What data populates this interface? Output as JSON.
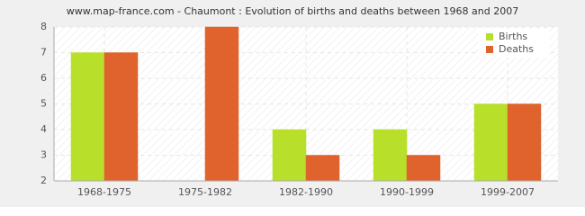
{
  "chart_data": {
    "type": "bar",
    "title": "www.map-france.com - Chaumont : Evolution of births and deaths between 1968 and 2007",
    "categories": [
      "1968-1975",
      "1975-1982",
      "1982-1990",
      "1990-1999",
      "1999-2007"
    ],
    "series": [
      {
        "name": "Births",
        "color": "#b8e02a",
        "values": [
          7,
          2,
          4,
          4,
          5
        ]
      },
      {
        "name": "Deaths",
        "color": "#e0632e",
        "values": [
          7,
          8,
          3,
          3,
          5
        ]
      }
    ],
    "ylim": [
      2,
      8
    ],
    "yticks": [
      2,
      3,
      4,
      5,
      6,
      7,
      8
    ],
    "grid": true,
    "legend": "top-right"
  }
}
